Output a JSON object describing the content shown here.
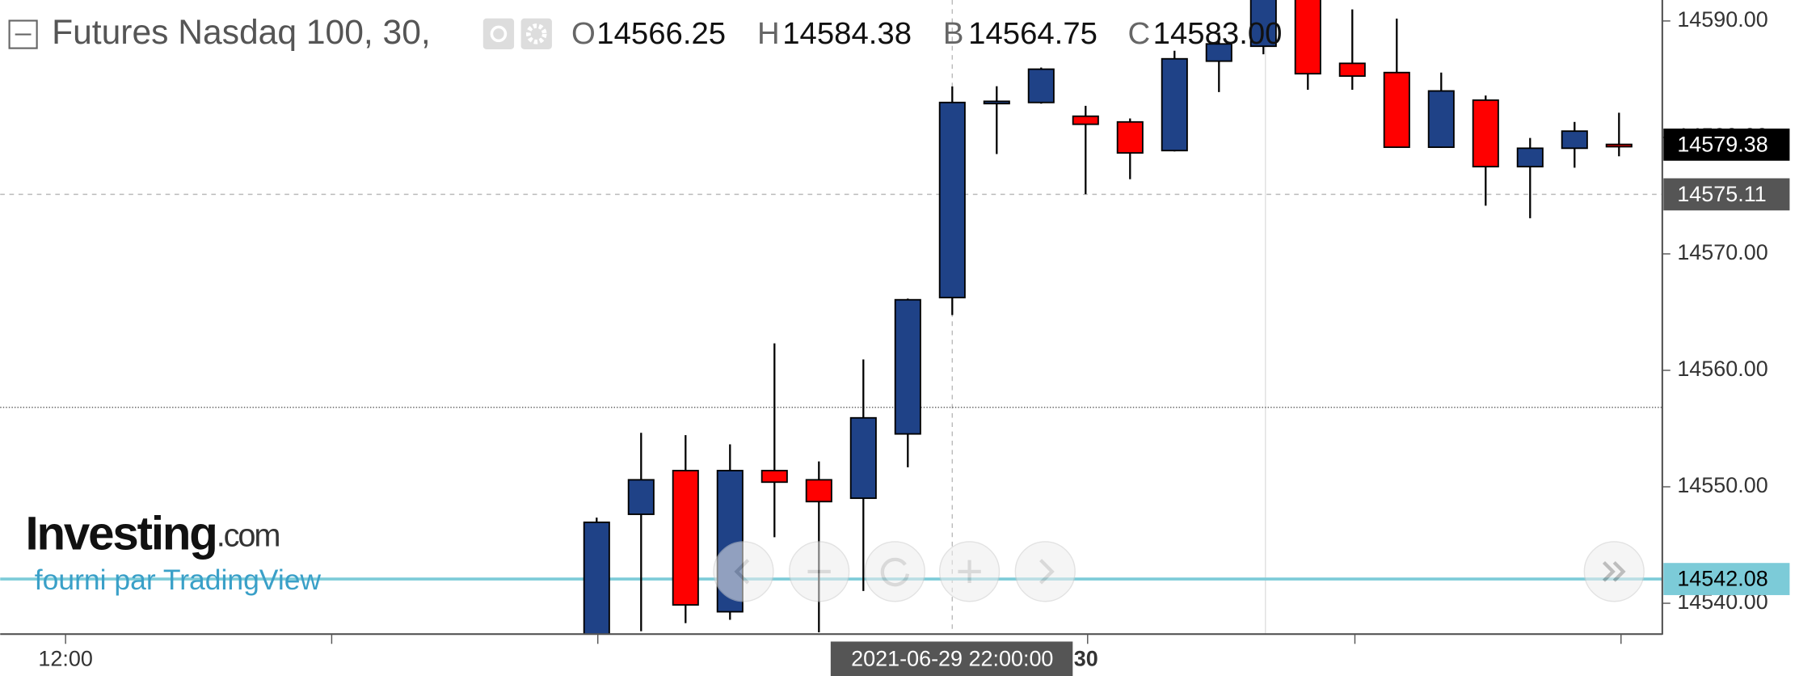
{
  "chart_data": {
    "type": "candlestick",
    "title": "Futures Nasdaq 100, 30,",
    "ohlc_header": [
      {
        "key": "O",
        "text": "14566.25"
      },
      {
        "key": "H",
        "text": "14584.38"
      },
      {
        "key": "B",
        "text": "14564.75"
      },
      {
        "key": "C",
        "text": "14583.00"
      }
    ],
    "categories": [
      null,
      null,
      null,
      null,
      null,
      null,
      null,
      null,
      null,
      null,
      null,
      null,
      null,
      null,
      null,
      null,
      null,
      null,
      null,
      null,
      null,
      null,
      null,
      null
    ],
    "open": [
      14537.0,
      14547.64,
      14551.39,
      14539.27,
      14551.39,
      14550.6,
      14549.02,
      14554.54,
      14566.25,
      14583.0,
      14583.0,
      14581.82,
      14581.33,
      14578.87,
      14586.55,
      14587.83,
      14592.5,
      14586.36,
      14585.57,
      14579.16,
      14583.2,
      14577.49,
      14579.07,
      14579.4
    ],
    "high": [
      14547.35,
      14554.64,
      14554.44,
      14553.65,
      14562.32,
      14552.18,
      14560.94,
      14566.16,
      14584.38,
      14584.4,
      14586.0,
      14582.71,
      14581.63,
      14587.44,
      14589.0,
      14594.0,
      14593.0,
      14590.99,
      14590.2,
      14585.57,
      14583.6,
      14579.95,
      14581.33,
      14582.12
    ],
    "low": [
      14536.5,
      14537.6,
      14538.29,
      14538.58,
      14545.67,
      14537.5,
      14541.05,
      14551.68,
      14564.75,
      14578.57,
      14582.9,
      14575.13,
      14576.41,
      14578.8,
      14583.89,
      14587.14,
      14584.09,
      14584.09,
      14579.1,
      14579.1,
      14574.14,
      14573.06,
      14577.4,
      14578.38
    ],
    "close": [
      14546.95,
      14550.6,
      14539.86,
      14551.39,
      14550.4,
      14548.73,
      14555.92,
      14566.06,
      14583.0,
      14583.1,
      14585.86,
      14581.13,
      14578.67,
      14586.75,
      14588.03,
      14593.0,
      14585.47,
      14585.27,
      14579.16,
      14583.99,
      14577.49,
      14579.07,
      14580.54,
      14579.38
    ],
    "up_color": "#1f4287",
    "down_color": "#ff0000",
    "ylim": [
      14537.4,
      14591.8
    ],
    "yticks": [
      {
        "value": 14540,
        "label": "14540.00"
      },
      {
        "value": 14550,
        "label": "14550.00"
      },
      {
        "value": 14560,
        "label": "14560.00"
      },
      {
        "value": 14570,
        "label": "14570.00"
      },
      {
        "value": 14580,
        "label": "14580.00"
      },
      {
        "value": 14590,
        "label": "14590.00"
      }
    ],
    "x_axis_labels": [
      "12:00",
      "30"
    ],
    "price_labels": [
      {
        "value": 14579.38,
        "label": "14579.38",
        "style": "last"
      },
      {
        "value": 14575.11,
        "label": "14575.11",
        "style": "crosshair"
      },
      {
        "value": 14542.08,
        "label": "14542.08",
        "style": "line"
      }
    ],
    "reference_lines": [
      14556.82
    ],
    "crosshair_label": "2021-06-29 22:00:00",
    "watermark": {
      "brand": "Investing",
      "suffix": ".com",
      "provider": "fourni par TradingView"
    }
  }
}
